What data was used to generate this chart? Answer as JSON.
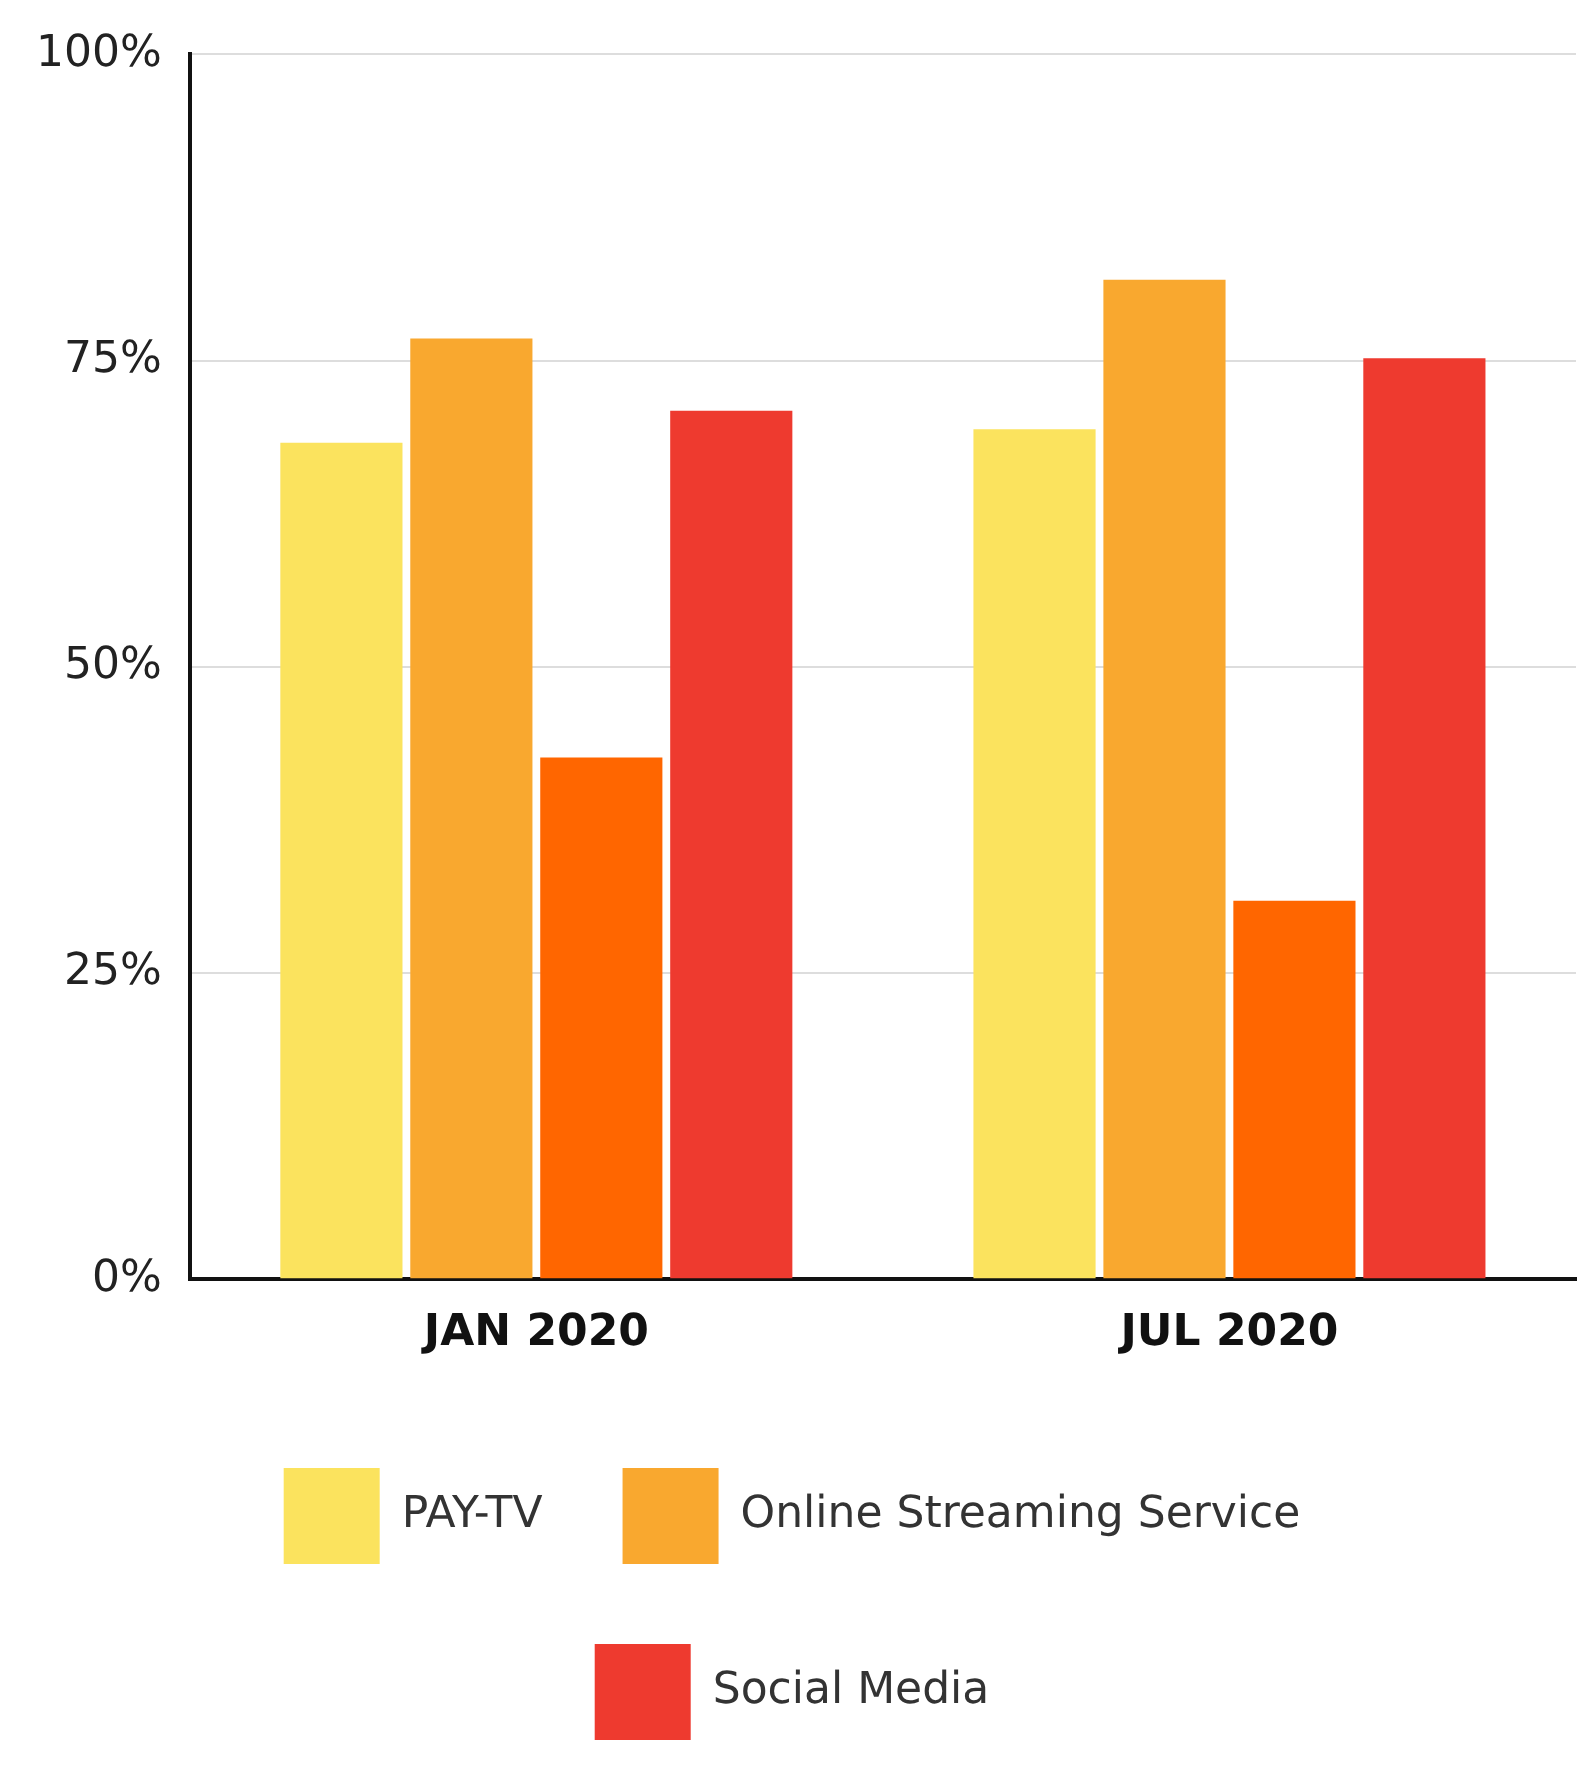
{
  "chart_data": {
    "type": "bar",
    "categories": [
      "JAN 2020",
      "JUL 2020"
    ],
    "series": [
      {
        "name": "PAY-TV",
        "color": "#fbe35e",
        "values": [
          68.3,
          69.4
        ]
      },
      {
        "name": "Online Streaming Service",
        "color": "#f9a82f",
        "values": [
          76.8,
          81.6
        ]
      },
      {
        "color": "#ff6600",
        "values": [
          42.6,
          30.9
        ]
      },
      {
        "name": "Social Media",
        "color": "#ee3a2f",
        "values": [
          70.9,
          75.2
        ]
      }
    ],
    "ylim": [
      0,
      100
    ],
    "yticks": [
      {
        "value": 0,
        "label": "0%"
      },
      {
        "value": 25,
        "label": "25%"
      },
      {
        "value": 50,
        "label": "50%"
      },
      {
        "value": 75,
        "label": "75%"
      },
      {
        "value": 100,
        "label": "100%"
      }
    ],
    "grid": "y",
    "legend": "bottom"
  }
}
